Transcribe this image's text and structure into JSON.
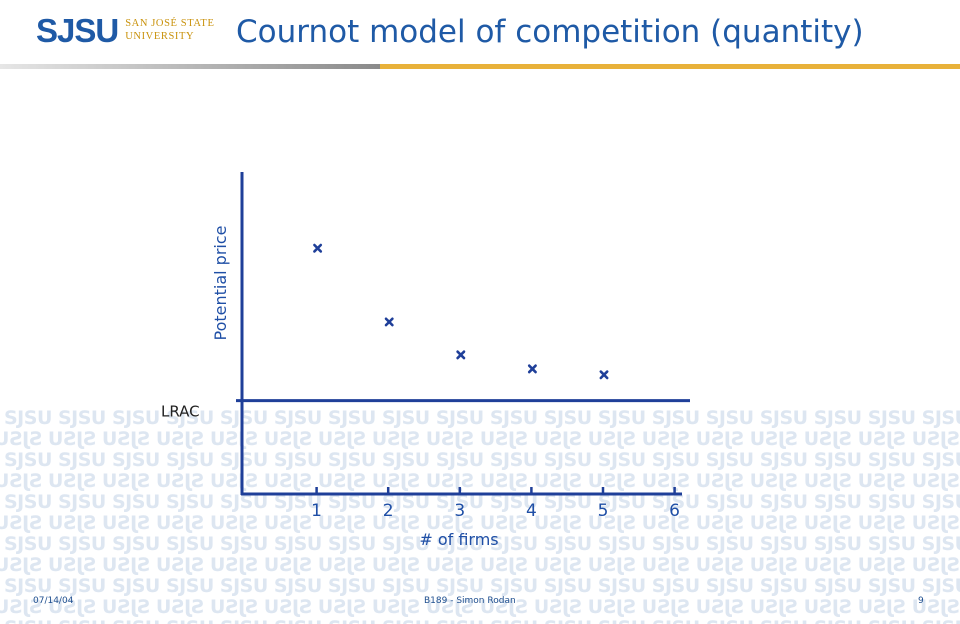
{
  "header": {
    "logo_mark": "SJSU",
    "logo_line1": "SAN JOSÉ STATE",
    "logo_line2": "UNIVERSITY",
    "title": "Cournot model of competition (quantity)"
  },
  "watermark_text": "SJSU",
  "chart_data": {
    "type": "scatter",
    "xlabel": "# of firms",
    "ylabel": "Potential price",
    "x_ticks": [
      1,
      2,
      3,
      4,
      5,
      6
    ],
    "xlim": [
      0,
      6
    ],
    "series": [
      {
        "x": [
          1,
          2,
          3,
          4,
          5
        ],
        "y": [
          100,
          70,
          56.6,
          50.9,
          48.5
        ]
      }
    ],
    "reference_line": {
      "label": "LRAC",
      "y": 38
    },
    "ylim": [
      0,
      131
    ],
    "grid": false,
    "marker": "x",
    "colors": {
      "axis": "#1f3f99",
      "marker": "#1f3f99",
      "label": "#1f4fa6"
    }
  },
  "footer": {
    "date": "07/14/04",
    "center": "B189 - Simon Rodan",
    "page": "9"
  }
}
